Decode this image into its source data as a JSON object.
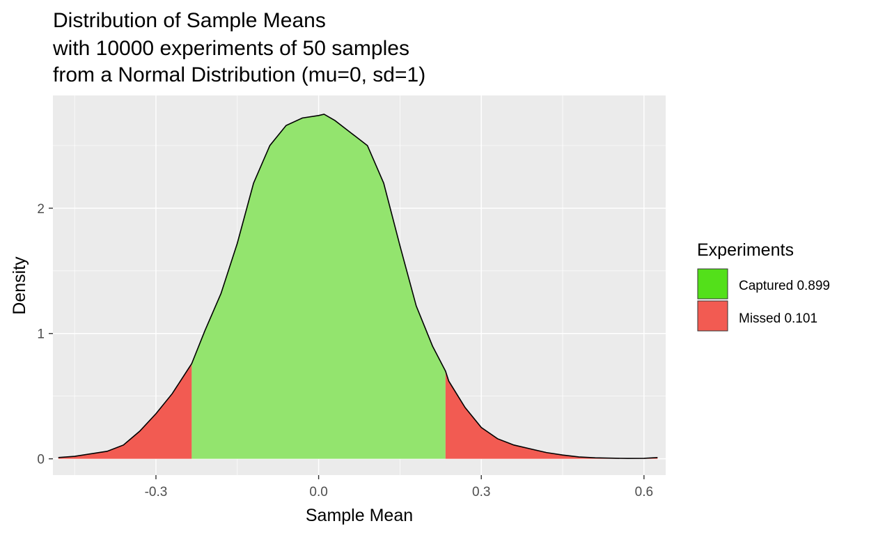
{
  "chart_data": {
    "type": "area",
    "title_lines": [
      "Distribution of Sample Means",
      "with 10000 experiments of 50 samples",
      "from a Normal Distribution (mu=0, sd=1)"
    ],
    "xlabel": "Sample Mean",
    "ylabel": "Density",
    "xlim": [
      -0.49,
      0.64
    ],
    "ylim": [
      -0.13,
      2.9
    ],
    "x_ticks": [
      -0.3,
      0.0,
      0.3,
      0.6
    ],
    "x_tick_labels": [
      "-0.3",
      "0.0",
      "0.3",
      "0.6"
    ],
    "y_ticks": [
      0,
      1,
      2
    ],
    "y_tick_labels": [
      "0",
      "1",
      "2"
    ],
    "grid": true,
    "legend": {
      "title": "Experiments",
      "position": "right",
      "items": [
        {
          "label": "Captured 0.899",
          "color": "#53e01a"
        },
        {
          "label": "Missed 0.101",
          "color": "#f25b52"
        }
      ]
    },
    "cutoffs": [
      -0.234,
      0.234
    ],
    "regions": [
      {
        "name": "Missed 0.101",
        "x_from": -0.48,
        "x_to": -0.234,
        "color": "#f25b52"
      },
      {
        "name": "Captured 0.899",
        "x_from": -0.234,
        "x_to": 0.234,
        "color": "#93e46e"
      },
      {
        "name": "Missed 0.101",
        "x_from": 0.234,
        "x_to": 0.625,
        "color": "#f25b52"
      }
    ],
    "density_x": [
      -0.48,
      -0.45,
      -0.42,
      -0.39,
      -0.36,
      -0.33,
      -0.3,
      -0.27,
      -0.24,
      -0.234,
      -0.21,
      -0.18,
      -0.15,
      -0.12,
      -0.09,
      -0.06,
      -0.03,
      0.0,
      0.01,
      0.03,
      0.06,
      0.09,
      0.12,
      0.15,
      0.18,
      0.21,
      0.234,
      0.24,
      0.27,
      0.3,
      0.33,
      0.36,
      0.39,
      0.42,
      0.45,
      0.48,
      0.51,
      0.54,
      0.57,
      0.6,
      0.625
    ],
    "density_y": [
      0.01,
      0.02,
      0.04,
      0.06,
      0.11,
      0.22,
      0.36,
      0.52,
      0.72,
      0.76,
      1.02,
      1.32,
      1.72,
      2.2,
      2.5,
      2.66,
      2.72,
      2.74,
      2.75,
      2.7,
      2.6,
      2.5,
      2.2,
      1.7,
      1.22,
      0.9,
      0.7,
      0.62,
      0.41,
      0.25,
      0.16,
      0.11,
      0.08,
      0.05,
      0.03,
      0.015,
      0.008,
      0.005,
      0.003,
      0.004,
      0.01
    ]
  }
}
